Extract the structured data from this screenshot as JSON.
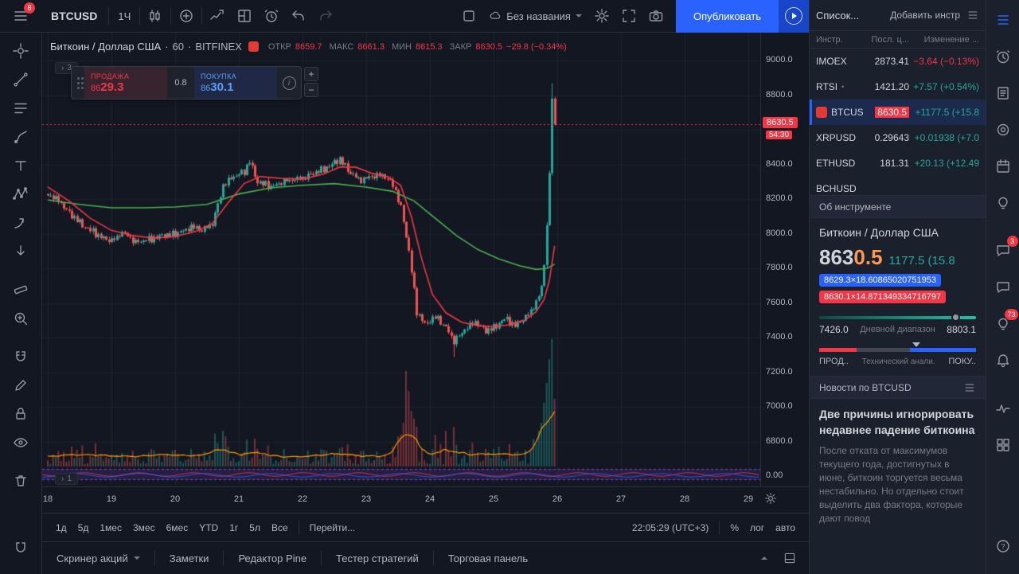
{
  "topbar": {
    "menu_badge": "8",
    "symbol": "BTCUSD",
    "interval": "1Ч",
    "layout_name": "Без названия",
    "publish_label": "Опубликовать"
  },
  "chart": {
    "legend": {
      "title": "Биткоин / Доллар США",
      "separator": "·",
      "interval": "60",
      "exchange": "BITFINEX",
      "open_label": "ОТКР",
      "open": "8659.7",
      "high_label": "МАКС",
      "high": "8661.3",
      "low_label": "МИН",
      "low": "8615.3",
      "close_label": "ЗАКР",
      "close": "8630.5",
      "change": "−29.8 (−0.34%)"
    },
    "order_panel": {
      "sell_label": "ПРОДАЖА",
      "sell_price_small": "86",
      "sell_price_big": "29.3",
      "spread": "0.8",
      "buy_label": "ПОКУПКА",
      "buy_price_small": "86",
      "buy_price_big": "30.1"
    },
    "pane_collapsed_top": "3",
    "pane_collapsed_bottom": "1",
    "zero_label": "0.00",
    "footer": {
      "ranges": [
        "1д",
        "5д",
        "1мес",
        "3мес",
        "6мес",
        "YTD",
        "1г",
        "5л",
        "Все"
      ],
      "goto": "Перейти...",
      "clock": "22:05:29 (UTC+3)",
      "percent": "%",
      "log": "лог",
      "auto": "авто"
    }
  },
  "chart_data": {
    "type": "candlestick",
    "symbol": "BTCUSD",
    "exchange": "BITFINEX",
    "interval_minutes": 60,
    "days_axis": [
      18,
      19,
      20,
      21,
      22,
      23,
      24,
      25,
      26,
      27,
      28,
      29
    ],
    "candles_per_day": 24,
    "num_candles": 192,
    "last_price": 8630.5,
    "countdown": "54:30",
    "price_axis": {
      "min": 6800,
      "max": 9000,
      "grid_step": 200,
      "labels": [
        9000,
        8800,
        8400,
        8200,
        8000,
        7800,
        7600,
        7400,
        7200,
        7000,
        6800
      ]
    },
    "noise_amp": 14,
    "noise_cutoff": 185,
    "close_anchors": [
      [
        0,
        8230
      ],
      [
        4,
        8190
      ],
      [
        8,
        8120
      ],
      [
        14,
        8040
      ],
      [
        20,
        7980
      ],
      [
        24,
        7960
      ],
      [
        28,
        8010
      ],
      [
        33,
        7950
      ],
      [
        38,
        7970
      ],
      [
        44,
        7990
      ],
      [
        48,
        8000
      ],
      [
        54,
        8040
      ],
      [
        58,
        8020
      ],
      [
        62,
        8060
      ],
      [
        66,
        8280
      ],
      [
        70,
        8330
      ],
      [
        74,
        8360
      ],
      [
        76,
        8420
      ],
      [
        79,
        8300
      ],
      [
        84,
        8270
      ],
      [
        90,
        8310
      ],
      [
        96,
        8320
      ],
      [
        100,
        8350
      ],
      [
        106,
        8390
      ],
      [
        110,
        8430
      ],
      [
        114,
        8350
      ],
      [
        118,
        8310
      ],
      [
        122,
        8330
      ],
      [
        126,
        8340
      ],
      [
        130,
        8290
      ],
      [
        133,
        8150
      ],
      [
        136,
        7900
      ],
      [
        139,
        7550
      ],
      [
        142,
        7480
      ],
      [
        146,
        7520
      ],
      [
        150,
        7460
      ],
      [
        153,
        7380
      ],
      [
        157,
        7450
      ],
      [
        161,
        7490
      ],
      [
        165,
        7440
      ],
      [
        168,
        7460
      ],
      [
        172,
        7510
      ],
      [
        176,
        7470
      ],
      [
        180,
        7520
      ],
      [
        183,
        7580
      ],
      [
        185,
        7640
      ],
      [
        186,
        7700
      ],
      [
        187,
        7820
      ],
      [
        188,
        8050
      ],
      [
        189,
        8350
      ],
      [
        190,
        8780
      ],
      [
        191,
        8630.5
      ]
    ],
    "ma_slow_anchors": [
      [
        0,
        8195
      ],
      [
        12,
        8170
      ],
      [
        24,
        8150
      ],
      [
        36,
        8150
      ],
      [
        48,
        8155
      ],
      [
        60,
        8170
      ],
      [
        72,
        8230
      ],
      [
        84,
        8265
      ],
      [
        96,
        8280
      ],
      [
        108,
        8290
      ],
      [
        120,
        8270
      ],
      [
        130,
        8245
      ],
      [
        138,
        8190
      ],
      [
        146,
        8090
      ],
      [
        154,
        7990
      ],
      [
        162,
        7910
      ],
      [
        170,
        7855
      ],
      [
        178,
        7815
      ],
      [
        184,
        7795
      ],
      [
        188,
        7800
      ],
      [
        191,
        7825
      ]
    ],
    "ma_fast_anchors": [
      [
        0,
        8270
      ],
      [
        8,
        8190
      ],
      [
        16,
        8090
      ],
      [
        24,
        8020
      ],
      [
        32,
        7990
      ],
      [
        40,
        7975
      ],
      [
        48,
        7985
      ],
      [
        56,
        8015
      ],
      [
        62,
        8060
      ],
      [
        68,
        8180
      ],
      [
        74,
        8290
      ],
      [
        80,
        8330
      ],
      [
        88,
        8320
      ],
      [
        96,
        8315
      ],
      [
        104,
        8345
      ],
      [
        110,
        8385
      ],
      [
        116,
        8385
      ],
      [
        122,
        8350
      ],
      [
        128,
        8330
      ],
      [
        133,
        8280
      ],
      [
        137,
        8100
      ],
      [
        141,
        7850
      ],
      [
        145,
        7650
      ],
      [
        150,
        7545
      ],
      [
        156,
        7490
      ],
      [
        162,
        7470
      ],
      [
        168,
        7465
      ],
      [
        174,
        7475
      ],
      [
        180,
        7505
      ],
      [
        184,
        7550
      ],
      [
        187,
        7620
      ],
      [
        189,
        7730
      ],
      [
        191,
        7930
      ]
    ],
    "vol_overrides": {
      "66": 45,
      "67": 38,
      "133": 40,
      "134": 55,
      "135": 120,
      "136": 95,
      "137": 70,
      "138": 60,
      "139": 50,
      "146": 40,
      "150": 45,
      "153": 50,
      "160": 30,
      "170": 25,
      "183": 35,
      "185": 45,
      "186": 55,
      "187": 80,
      "188": 105,
      "189": 135,
      "190": 160,
      "191": 85
    },
    "wick_overrides": {
      "153": {
        "low": 7290
      },
      "190": {
        "high": 8868
      }
    },
    "colors": {
      "up": "#26a69a",
      "down": "#ef5350",
      "ma_fast": "#f23645",
      "ma_slow": "#4caf50",
      "volume_line": "#ff9800",
      "band": "rgba(103,58,183,0.22)"
    }
  },
  "bottom_tabs": {
    "tabs": [
      "Скринер акций",
      "Заметки",
      "Редактор Pine",
      "Тестер стратегий",
      "Торговая панель"
    ]
  },
  "watchlist": {
    "header": "Список...",
    "add_button": "Добавить инстр",
    "columns": {
      "symbol": "Инстр.",
      "last": "Посл. ц...",
      "change": "Изменение ..."
    },
    "rows": [
      {
        "name": "IMOEX",
        "last": "2873.41",
        "change": "−3.64 (−0.13%)",
        "dir": "down"
      },
      {
        "name": "RTSI",
        "marker": "•",
        "last": "1421.20",
        "change": "+7.57 (+0.54%)",
        "dir": "up"
      },
      {
        "name": "BTCUSD",
        "logo": true,
        "selected": true,
        "last": "8630.5",
        "last_badge": "down",
        "change": "+1177.5 (+15.8",
        "dir": "up"
      },
      {
        "name": "XRPUSD",
        "last": "0.29643",
        "change": "+0.01938 (+7.0",
        "dir": "up"
      },
      {
        "name": "ETHUSD",
        "last": "181.31",
        "change": "+20.13 (+12.49",
        "dir": "up"
      },
      {
        "name": "BCHUSD",
        "last": "",
        "change": "",
        "dir": "up"
      }
    ]
  },
  "symbol_info": {
    "section_title": "Об инструменте",
    "name": "Биткоин / Доллар США",
    "price_main": "863",
    "price_accent": "0.5",
    "price_change": "1177.5 (15.8",
    "bid_line": "8629.3×18.60865020751953",
    "ask_line": "8630.1×14.871349334716797",
    "range_low": "7426.0",
    "range_label": "Дневной диапазон",
    "range_high": "8803.1",
    "range_pos_pct": 87,
    "tech": {
      "sell_label": "ПРОД..",
      "center_label": "Технический анали.",
      "buy_label": "ПОКУ..",
      "sell_pct": 24,
      "neutral_pct": 34,
      "buy_pct": 42,
      "marker_pct": 62
    }
  },
  "news": {
    "section_title": "Новости по BTCUSD",
    "headline": "Две причины игнорировать недавнее падение биткоина",
    "body": "После отката от максимумов текущего года, достигнутых в июне, биткоин торгуется весьма нестабильно. Но отдельно стоит выделить два фактора, которые дают повод"
  },
  "right_rail": {
    "badges": {
      "chat": "3",
      "notifications": "73"
    }
  }
}
